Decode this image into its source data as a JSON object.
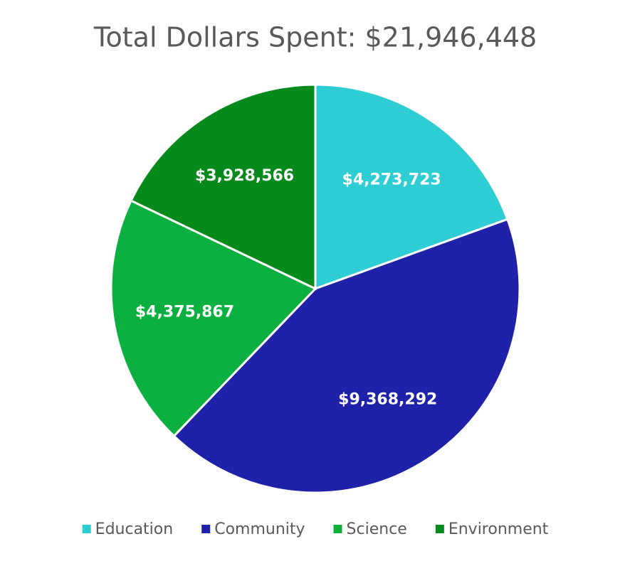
{
  "chart_data": {
    "type": "pie",
    "title": "Total Dollars Spent: $21,946,448",
    "categories": [
      "Education",
      "Community",
      "Science",
      "Environment"
    ],
    "values": [
      4273723,
      9368292,
      4375867,
      3928566
    ],
    "value_labels": [
      "$4,273,723",
      "$9,368,292",
      "$4,375,867",
      "$3,928,566"
    ],
    "colors": [
      "#2ecdd4",
      "#1f22a8",
      "#0cb040",
      "#078a1c"
    ],
    "legend": "bottom"
  }
}
